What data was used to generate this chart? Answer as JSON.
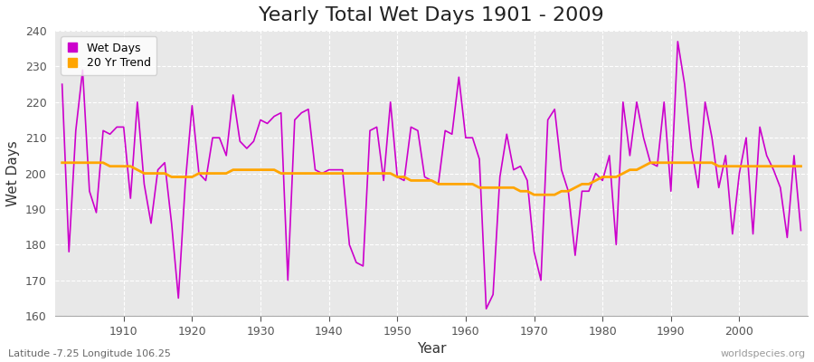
{
  "title": "Yearly Total Wet Days 1901 - 2009",
  "xlabel": "Year",
  "ylabel": "Wet Days",
  "subtitle": "Latitude -7.25 Longitude 106.25",
  "watermark": "worldspecies.org",
  "years": [
    1901,
    1902,
    1903,
    1904,
    1905,
    1906,
    1907,
    1908,
    1909,
    1910,
    1911,
    1912,
    1913,
    1914,
    1915,
    1916,
    1917,
    1918,
    1919,
    1920,
    1921,
    1922,
    1923,
    1924,
    1925,
    1926,
    1927,
    1928,
    1929,
    1930,
    1931,
    1932,
    1933,
    1934,
    1935,
    1936,
    1937,
    1938,
    1939,
    1940,
    1941,
    1942,
    1943,
    1944,
    1945,
    1946,
    1947,
    1948,
    1949,
    1950,
    1951,
    1952,
    1953,
    1954,
    1955,
    1956,
    1957,
    1958,
    1959,
    1960,
    1961,
    1962,
    1963,
    1964,
    1965,
    1966,
    1967,
    1968,
    1969,
    1970,
    1971,
    1972,
    1973,
    1974,
    1975,
    1976,
    1977,
    1978,
    1979,
    1980,
    1981,
    1982,
    1983,
    1984,
    1985,
    1986,
    1987,
    1988,
    1989,
    1990,
    1991,
    1992,
    1993,
    1994,
    1995,
    1996,
    1997,
    1998,
    1999,
    2000,
    2001,
    2002,
    2003,
    2004,
    2005,
    2006,
    2007,
    2008,
    2009
  ],
  "wet_days": [
    225,
    178,
    212,
    229,
    195,
    189,
    212,
    211,
    213,
    213,
    193,
    220,
    197,
    186,
    201,
    203,
    186,
    165,
    197,
    219,
    200,
    198,
    210,
    210,
    205,
    222,
    209,
    207,
    209,
    215,
    214,
    216,
    217,
    170,
    215,
    217,
    218,
    201,
    200,
    201,
    201,
    201,
    180,
    175,
    174,
    212,
    213,
    198,
    220,
    199,
    198,
    213,
    212,
    199,
    198,
    197,
    212,
    211,
    227,
    210,
    210,
    204,
    162,
    166,
    199,
    211,
    201,
    202,
    198,
    178,
    170,
    215,
    218,
    201,
    195,
    177,
    195,
    195,
    200,
    198,
    205,
    180,
    220,
    205,
    220,
    210,
    203,
    202,
    220,
    195,
    237,
    225,
    207,
    196,
    220,
    210,
    196,
    205,
    183,
    200,
    210,
    183,
    213,
    205,
    201,
    196,
    182,
    205,
    184
  ],
  "trend": [
    203,
    203,
    203,
    203,
    203,
    203,
    203,
    202,
    202,
    202,
    202,
    201,
    200,
    200,
    200,
    200,
    199,
    199,
    199,
    199,
    200,
    200,
    200,
    200,
    200,
    201,
    201,
    201,
    201,
    201,
    201,
    201,
    200,
    200,
    200,
    200,
    200,
    200,
    200,
    200,
    200,
    200,
    200,
    200,
    200,
    200,
    200,
    200,
    200,
    199,
    199,
    198,
    198,
    198,
    198,
    197,
    197,
    197,
    197,
    197,
    197,
    196,
    196,
    196,
    196,
    196,
    196,
    195,
    195,
    194,
    194,
    194,
    194,
    195,
    195,
    196,
    197,
    197,
    198,
    199,
    199,
    199,
    200,
    201,
    201,
    202,
    203,
    203,
    203,
    203,
    203,
    203,
    203,
    203,
    203,
    203,
    202,
    202,
    202,
    202,
    202,
    202,
    202,
    202,
    202,
    202,
    202,
    202,
    202
  ],
  "wet_days_color": "#cc00cc",
  "trend_color": "#ffa500",
  "fig_bg_color": "#ffffff",
  "plot_bg_color": "#e8e8e8",
  "grid_color": "#ffffff",
  "ylim": [
    160,
    240
  ],
  "yticks": [
    160,
    170,
    180,
    190,
    200,
    210,
    220,
    230,
    240
  ],
  "title_fontsize": 16,
  "axis_fontsize": 11,
  "legend_fontsize": 9,
  "label_fontsize": 9
}
